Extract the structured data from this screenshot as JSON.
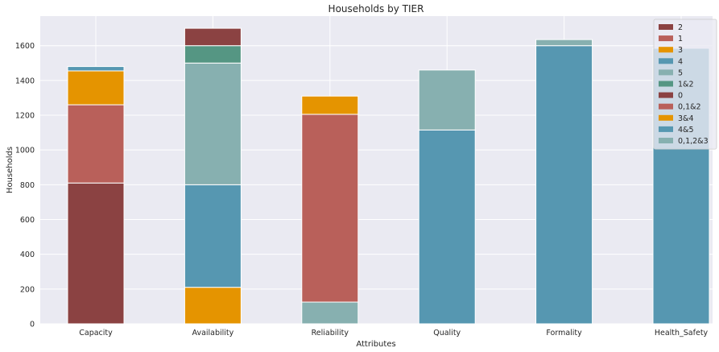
{
  "chart_data": {
    "type": "bar",
    "stacked": true,
    "title": "Households by TIER",
    "xlabel": "Attributes",
    "ylabel": "Households",
    "ylim": [
      0,
      1770
    ],
    "yticks": [
      0,
      200,
      400,
      600,
      800,
      1000,
      1200,
      1400,
      1600
    ],
    "grid": true,
    "legend_position": "upper right",
    "categories": [
      "Capacity",
      "Availability",
      "Reliability",
      "Quality",
      "Formality",
      "Health_Safety"
    ],
    "colors": {
      "dark_red": "#8b4242",
      "red": "#b9605a",
      "orange": "#e59400",
      "blue": "#5697b1",
      "teal": "#87b0b0",
      "green": "#559683",
      "plot_bg": "#eaeaf2",
      "grid": "#ffffff"
    },
    "series": [
      {
        "name": "2",
        "color": "#8b4242",
        "values": [
          810,
          null,
          null,
          null,
          null,
          null
        ]
      },
      {
        "name": "1",
        "color": "#b9605a",
        "values": [
          450,
          null,
          null,
          null,
          null,
          null
        ]
      },
      {
        "name": "3",
        "color": "#e59400",
        "values": [
          195,
          null,
          null,
          null,
          null,
          null
        ]
      },
      {
        "name": "4",
        "color": "#5697b1",
        "values": [
          25,
          null,
          null,
          null,
          null,
          null
        ]
      },
      {
        "name": "5",
        "color": "#87b0b0",
        "values": [
          null,
          null,
          null,
          null,
          null,
          null
        ]
      },
      {
        "name": "1&2",
        "color": "#559683",
        "values": [
          null,
          null,
          null,
          null,
          null,
          null
        ]
      },
      {
        "name": "0",
        "color": "#8b4242",
        "values": [
          null,
          null,
          null,
          null,
          null,
          null
        ]
      },
      {
        "name": "0,1&2",
        "color": "#b9605a",
        "values": [
          null,
          null,
          null,
          null,
          null,
          null
        ]
      },
      {
        "name": "3&4",
        "color": "#e59400",
        "values": [
          null,
          null,
          null,
          null,
          null,
          null
        ]
      },
      {
        "name": "4&5",
        "color": "#5697b1",
        "values": [
          null,
          null,
          null,
          null,
          null,
          null
        ]
      },
      {
        "name": "0,1,2&3",
        "color": "#87b0b0",
        "values": [
          null,
          null,
          null,
          null,
          null,
          null
        ]
      }
    ],
    "stacks": [
      [
        {
          "series": "2",
          "value": 810
        },
        {
          "series": "1",
          "value": 450
        },
        {
          "series": "3",
          "value": 195
        },
        {
          "series": "4",
          "value": 25
        }
      ],
      [
        {
          "series": "3",
          "value": 210
        },
        {
          "series": "4",
          "value": 590
        },
        {
          "series": "5",
          "value": 700
        },
        {
          "series": "1&2",
          "value": 100
        },
        {
          "series": "0",
          "value": 100
        }
      ],
      [
        {
          "series": "5",
          "value": 125
        },
        {
          "series": "0,1&2",
          "value": 1080
        },
        {
          "series": "3&4",
          "value": 105
        }
      ],
      [
        {
          "series": "4",
          "value": 1115
        },
        {
          "series": "5",
          "value": 345
        }
      ],
      [
        {
          "series": "4&5",
          "value": 1600
        },
        {
          "series": "0,1,2&3",
          "value": 35
        }
      ],
      [
        {
          "series": "4&5",
          "value": 1585
        }
      ]
    ]
  }
}
